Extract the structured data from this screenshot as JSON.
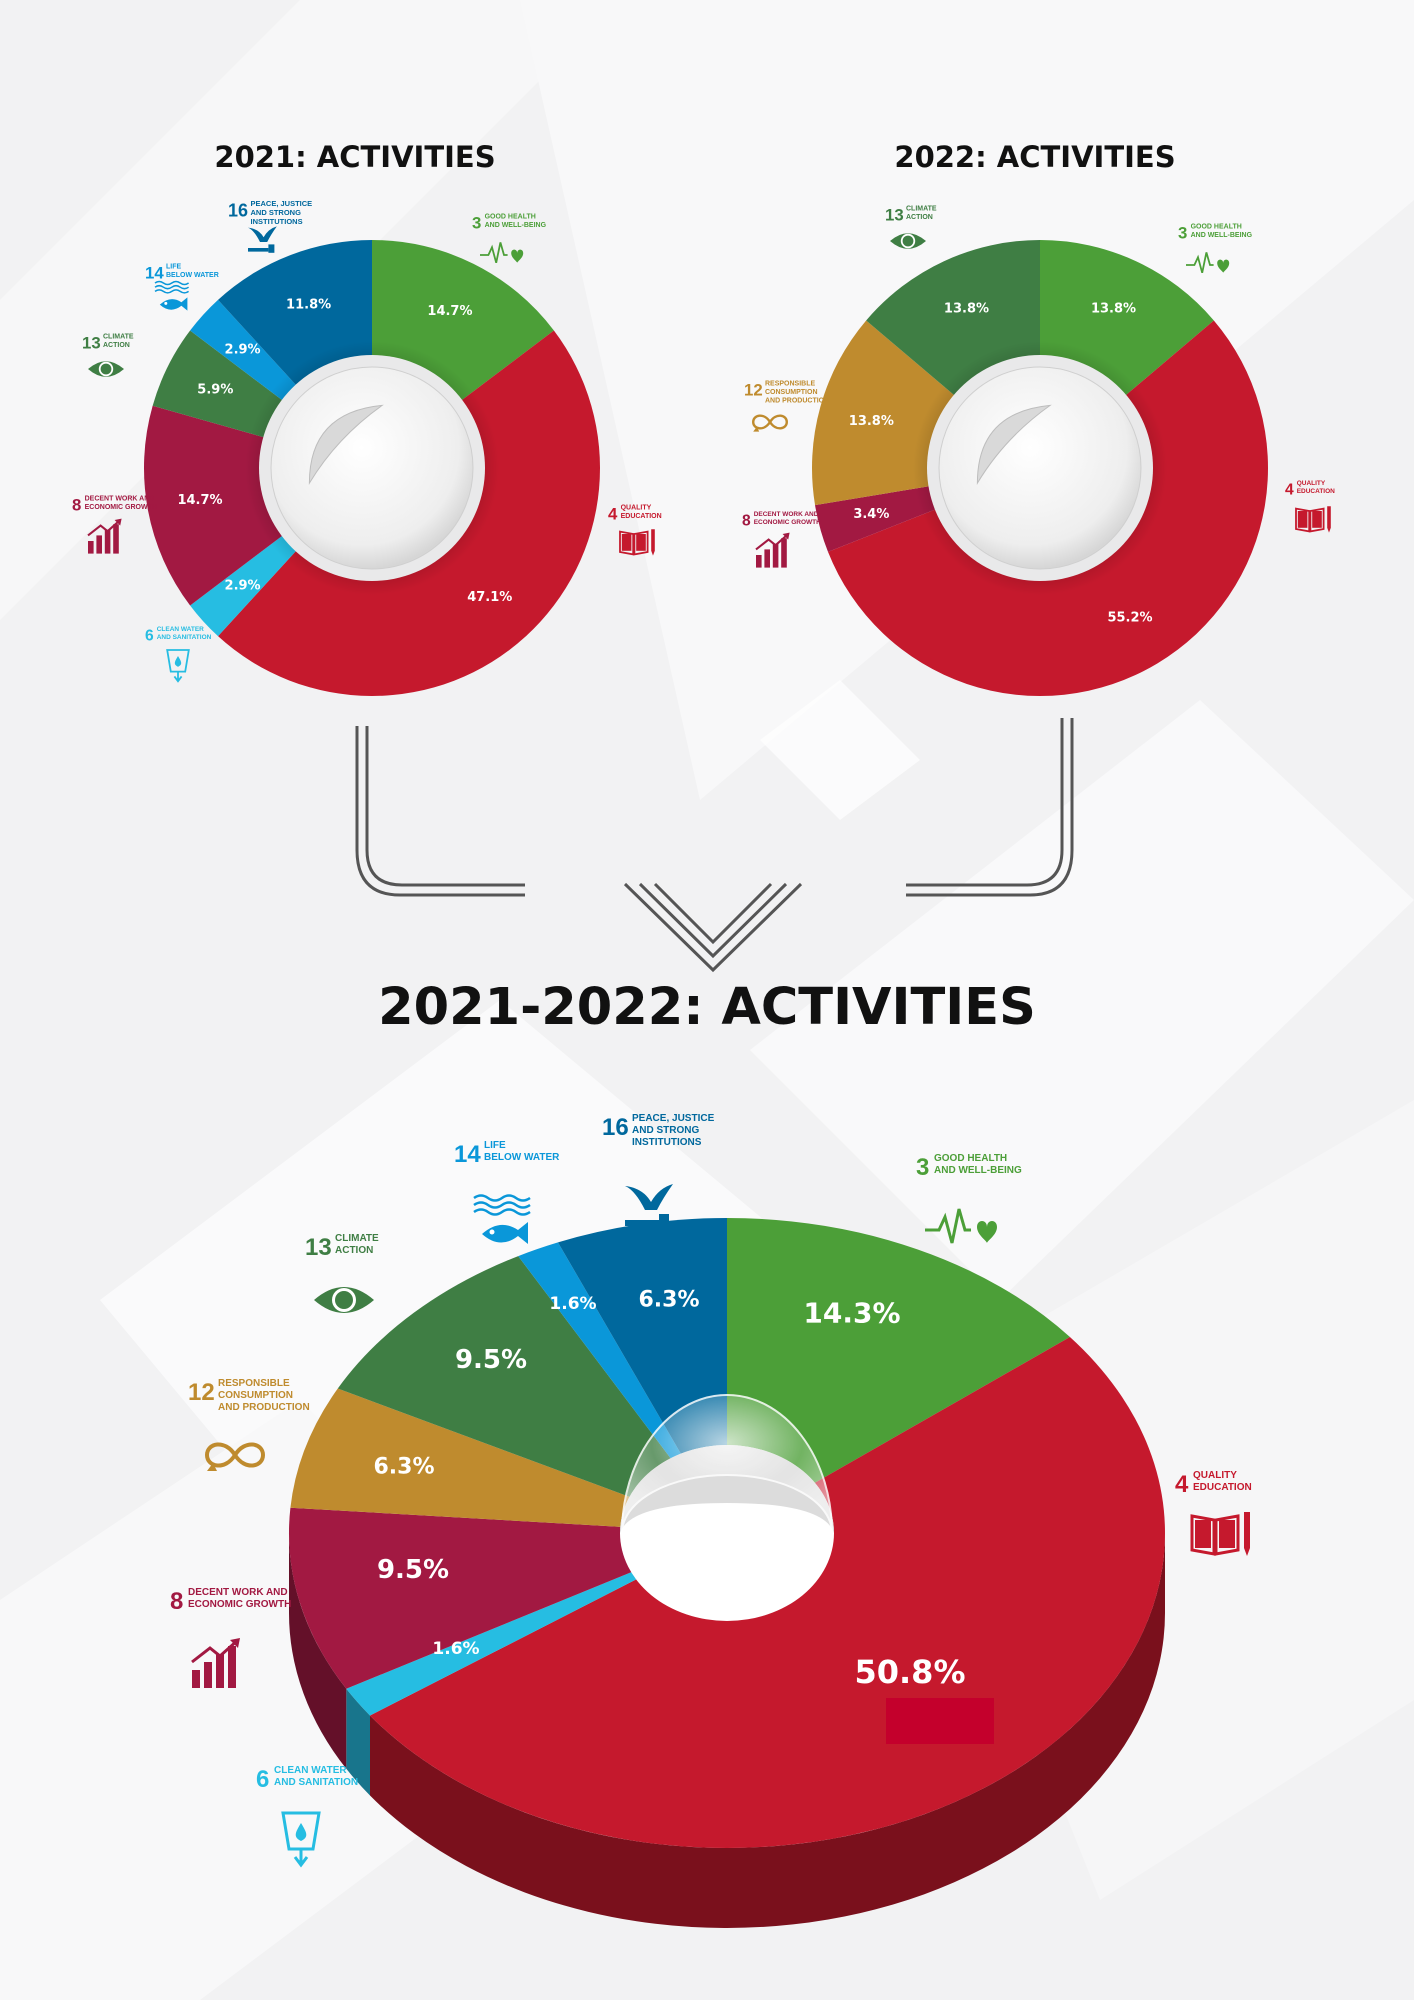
{
  "titles": {
    "chart_2021": "2021: ACTIVITIES",
    "chart_2022": "2022: ACTIVITIES",
    "chart_combined": "2021-2022: ACTIVITIES"
  },
  "chart_data": [
    {
      "type": "pie",
      "title": "2021: ACTIVITIES",
      "categories": [
        "3 GOOD HEALTH AND WELL-BEING",
        "4 QUALITY EDUCATION",
        "6 CLEAN WATER AND SANITATION",
        "8 DECENT WORK AND ECONOMIC GROWTH",
        "13 CLIMATE ACTION",
        "14 LIFE BELOW WATER",
        "16 PEACE, JUSTICE AND STRONG INSTITUTIONS"
      ],
      "values": [
        14.7,
        47.1,
        2.9,
        14.7,
        5.9,
        2.9,
        11.8
      ],
      "labels": [
        "14.7%",
        "47.1%",
        "2.9%",
        "14.7%",
        "5.9%",
        "2.9%",
        "11.8%"
      ],
      "colors": [
        "#4c9f38",
        "#c5192d",
        "#26bde2",
        "#a21942",
        "#3f7e44",
        "#0a97d9",
        "#00689d"
      ]
    },
    {
      "type": "pie",
      "title": "2022: ACTIVITIES",
      "categories": [
        "3 GOOD HEALTH AND WELL-BEING",
        "4 QUALITY EDUCATION",
        "8 DECENT WORK AND ECONOMIC GROWTH",
        "12 RESPONSIBLE CONSUMPTION AND PRODUCTION",
        "13 CLIMATE ACTION"
      ],
      "values": [
        13.8,
        55.2,
        3.4,
        13.8,
        13.8
      ],
      "labels": [
        "13.8%",
        "55.2%",
        "3.4%",
        "13.8%",
        "13.8%"
      ],
      "colors": [
        "#4c9f38",
        "#c5192d",
        "#a21942",
        "#bf8b2e",
        "#3f7e44"
      ]
    },
    {
      "type": "pie",
      "title": "2021-2022: ACTIVITIES",
      "categories": [
        "3 GOOD HEALTH AND WELL-BEING",
        "4 QUALITY EDUCATION",
        "6 CLEAN WATER AND SANITATION",
        "8 DECENT WORK AND ECONOMIC GROWTH",
        "12 RESPONSIBLE CONSUMPTION AND PRODUCTION",
        "13 CLIMATE ACTION",
        "14 LIFE BELOW WATER",
        "16 PEACE, JUSTICE AND STRONG INSTITUTIONS"
      ],
      "values": [
        14.3,
        50.8,
        1.6,
        9.5,
        6.3,
        9.5,
        1.6,
        6.3
      ],
      "labels": [
        "14.3%",
        "50.8%",
        "1.6%",
        "9.5%",
        "6.3%",
        "9.5%",
        "1.6%",
        "6.3%"
      ],
      "colors": [
        "#4c9f38",
        "#c5192d",
        "#26bde2",
        "#a21942",
        "#bf8b2e",
        "#3f7e44",
        "#0a97d9",
        "#00689d"
      ]
    }
  ],
  "sdg": {
    "g3": {
      "num": "3",
      "l1": "GOOD HEALTH",
      "l2": "AND WELL-BEING",
      "l3": ""
    },
    "g4": {
      "num": "4",
      "l1": "QUALITY",
      "l2": "EDUCATION",
      "l3": ""
    },
    "g6": {
      "num": "6",
      "l1": "CLEAN WATER",
      "l2": "AND SANITATION",
      "l3": ""
    },
    "g8": {
      "num": "8",
      "l1": "DECENT WORK AND",
      "l2": "ECONOMIC GROWTH",
      "l3": ""
    },
    "g12": {
      "num": "12",
      "l1": "RESPONSIBLE",
      "l2": "CONSUMPTION",
      "l3": "AND PRODUCTION"
    },
    "g13": {
      "num": "13",
      "l1": "CLIMATE",
      "l2": "ACTION",
      "l3": ""
    },
    "g14": {
      "num": "14",
      "l1": "LIFE",
      "l2": "BELOW WATER",
      "l3": ""
    },
    "g16": {
      "num": "16",
      "l1": "PEACE, JUSTICE",
      "l2": "AND STRONG",
      "l3": "INSTITUTIONS"
    }
  },
  "colors": {
    "g3": "#4c9f38",
    "g4": "#c5192d",
    "g6": "#26bde2",
    "g8": "#a21942",
    "g12": "#bf8b2e",
    "g13": "#3f7e44",
    "g14": "#0a97d9",
    "g16": "#00689d"
  }
}
